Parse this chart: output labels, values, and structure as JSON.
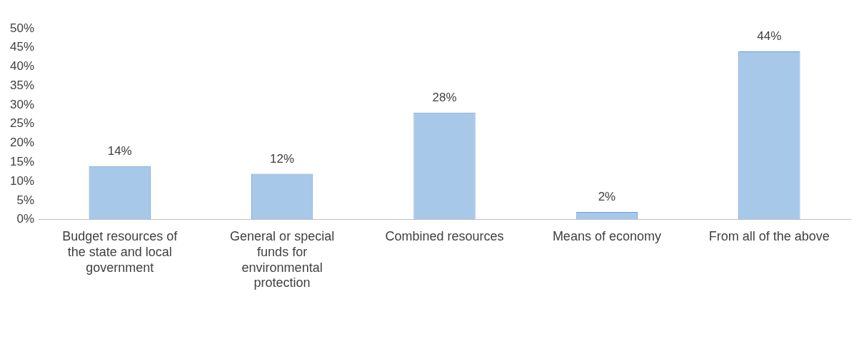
{
  "chart_data": {
    "type": "bar",
    "categories": [
      "Budget resources of the state and local government",
      "General or special funds for environmental protection",
      "Combined resources",
      "Means of economy",
      "From all of the above"
    ],
    "values": [
      14,
      12,
      28,
      2,
      44
    ],
    "color": "#a8c8ea",
    "ylim": [
      0,
      50
    ],
    "yticks": [
      {
        "value": 0,
        "label": "0%"
      },
      {
        "value": 5,
        "label": "5%"
      },
      {
        "value": 10,
        "label": "10%"
      },
      {
        "value": 15,
        "label": "15%"
      },
      {
        "value": 20,
        "label": "20%"
      },
      {
        "value": 25,
        "label": "25%"
      },
      {
        "value": 30,
        "label": "30%"
      },
      {
        "value": 35,
        "label": "35%"
      },
      {
        "value": 40,
        "label": "40%"
      },
      {
        "value": 45,
        "label": "45%"
      },
      {
        "value": 50,
        "label": "50%"
      }
    ],
    "value_labels": [
      "14%",
      "12%",
      "28%",
      "2%",
      "44%"
    ],
    "grid": false,
    "legend": false
  }
}
